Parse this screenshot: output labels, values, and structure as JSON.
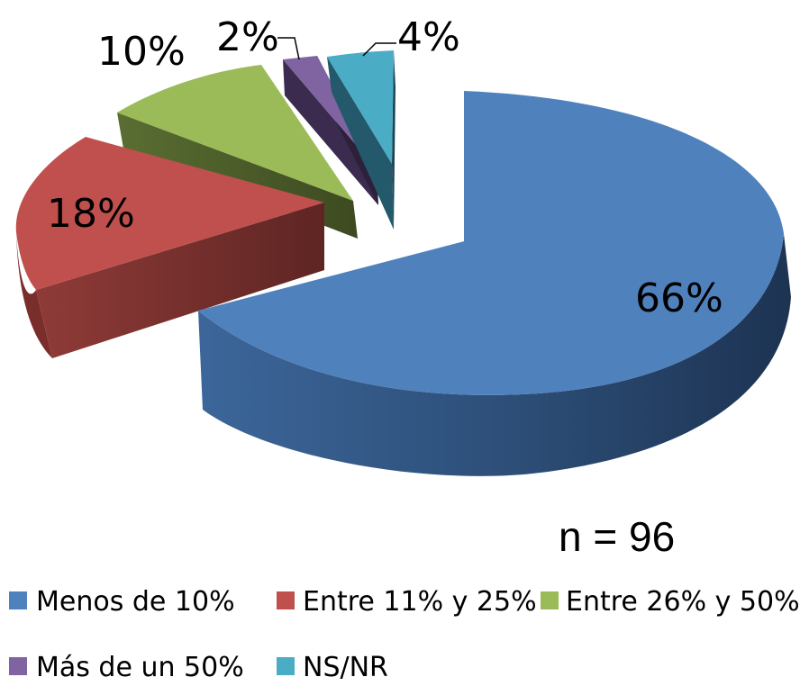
{
  "chart_data": {
    "type": "pie",
    "title": "",
    "subtitle": "",
    "note": "n = 96",
    "slices": [
      {
        "name": "Menos de 10%",
        "value": 66,
        "label": "66%",
        "color": "#4F81BD"
      },
      {
        "name": "Entre 11% y 25%",
        "value": 18,
        "label": "18%",
        "color": "#C0504D"
      },
      {
        "name": "Entre 26% y 50%",
        "value": 10,
        "label": "10%",
        "color": "#9BBB59"
      },
      {
        "name": "Más de un 50%",
        "value": 2,
        "label": "2%",
        "color": "#8064A2"
      },
      {
        "name": "NS/NR",
        "value": 4,
        "label": "4%",
        "color": "#4BACC6"
      }
    ],
    "legend_position": "bottom",
    "style": "3d-exploded-pie"
  }
}
